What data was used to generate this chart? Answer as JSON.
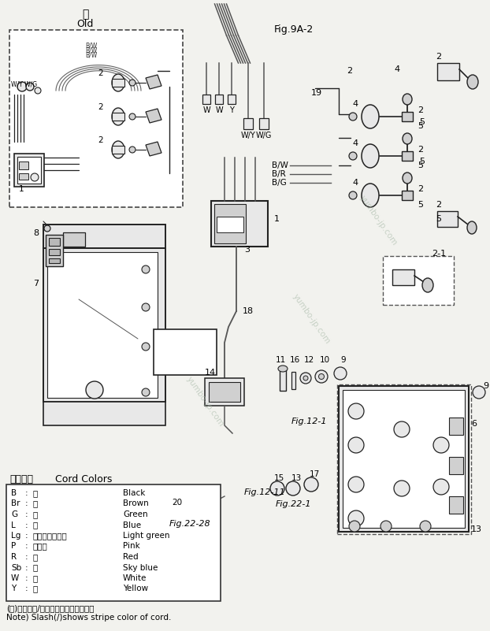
{
  "bg_color": "#f2f2ee",
  "fig_label": "Fig.9A-2",
  "old_label_jp": "旧",
  "old_label_en": "Old",
  "cord_colors_title_jp": "コード色",
  "cord_colors_title_en": "Cord Colors",
  "cord_colors": [
    [
      "B",
      "黒",
      "Black"
    ],
    [
      "Br",
      "茶",
      "Brown"
    ],
    [
      "G",
      "緑",
      "Green"
    ],
    [
      "L",
      "青",
      "Blue"
    ],
    [
      "Lg",
      "ライトグリーン",
      "Light green"
    ],
    [
      "P",
      "ピンク",
      "Pink"
    ],
    [
      "R",
      "赤",
      "Red"
    ],
    [
      "Sb",
      "空",
      "Sky blue"
    ],
    [
      "W",
      "白",
      "White"
    ],
    [
      "Y",
      "黄",
      "Yellow"
    ]
  ],
  "note_jp": "(注)　斜線（/）はストライプコード色",
  "note_en": "Note) Slash(/)shows stripe color of cord.",
  "watermark": "yumbo-jp.com"
}
